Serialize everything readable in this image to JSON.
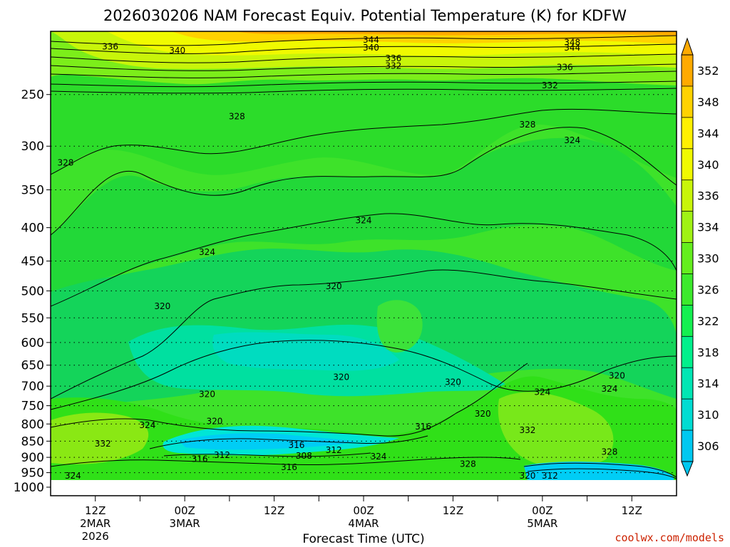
{
  "chart_data": {
    "type": "heatmap",
    "title": "2026030206 NAM Forecast Equiv. Potential Temperature (K) for KDFW",
    "xlabel": "Forecast Time (UTC)",
    "ylabel": "",
    "credit": "coolwx.com/models",
    "y_axis": {
      "scale": "log-pressure",
      "ylim": [
        1000,
        200
      ],
      "ticks": [
        250,
        300,
        350,
        400,
        450,
        500,
        550,
        600,
        650,
        700,
        750,
        800,
        850,
        900,
        950,
        1000
      ]
    },
    "x_axis": {
      "xlim_hours": [
        0,
        84
      ],
      "ticks": [
        {
          "hour": 6,
          "lines": [
            "12Z",
            "2MAR",
            "2026"
          ]
        },
        {
          "hour": 18,
          "lines": [
            "00Z",
            "3MAR"
          ]
        },
        {
          "hour": 30,
          "lines": [
            "12Z"
          ]
        },
        {
          "hour": 42,
          "lines": [
            "00Z",
            "4MAR"
          ]
        },
        {
          "hour": 54,
          "lines": [
            "12Z"
          ]
        },
        {
          "hour": 66,
          "lines": [
            "00Z",
            "5MAR"
          ]
        },
        {
          "hour": 78,
          "lines": [
            "12Z"
          ]
        }
      ]
    },
    "colorbar": {
      "levels": [
        306,
        310,
        314,
        318,
        322,
        326,
        330,
        334,
        336,
        340,
        344,
        348,
        352
      ],
      "colors": [
        "#00c8f0",
        "#00dcd2",
        "#00e6b4",
        "#00f08c",
        "#14f050",
        "#3cea2c",
        "#64ee1e",
        "#a0f214",
        "#c8f50a",
        "#f0fa00",
        "#fff000",
        "#ffd200",
        "#ffaa00"
      ]
    },
    "contour_labels": [
      {
        "value": "344",
        "h": 43,
        "p": 206
      },
      {
        "value": "348",
        "h": 70,
        "p": 208
      },
      {
        "value": "336",
        "h": 8,
        "p": 211
      },
      {
        "value": "340",
        "h": 17,
        "p": 214
      },
      {
        "value": "340",
        "h": 43,
        "p": 212
      },
      {
        "value": "344",
        "h": 70,
        "p": 212
      },
      {
        "value": "336",
        "h": 46,
        "p": 220
      },
      {
        "value": "332",
        "h": 46,
        "p": 226
      },
      {
        "value": "336",
        "h": 69,
        "p": 227
      },
      {
        "value": "332",
        "h": 67,
        "p": 242
      },
      {
        "value": "328",
        "h": 25,
        "p": 270
      },
      {
        "value": "328",
        "h": 64,
        "p": 278
      },
      {
        "value": "324",
        "h": 70,
        "p": 294
      },
      {
        "value": "328",
        "h": 2,
        "p": 318
      },
      {
        "value": "324",
        "h": 42,
        "p": 390
      },
      {
        "value": "324",
        "h": 21,
        "p": 436
      },
      {
        "value": "320",
        "h": 38,
        "p": 492
      },
      {
        "value": "320",
        "h": 15,
        "p": 528
      },
      {
        "value": "320",
        "h": 39,
        "p": 678
      },
      {
        "value": "320",
        "h": 54,
        "p": 690
      },
      {
        "value": "320",
        "h": 76,
        "p": 675
      },
      {
        "value": "324",
        "h": 66,
        "p": 715
      },
      {
        "value": "324",
        "h": 75,
        "p": 707
      },
      {
        "value": "320",
        "h": 21,
        "p": 720
      },
      {
        "value": "320",
        "h": 58,
        "p": 772
      },
      {
        "value": "320",
        "h": 22,
        "p": 792
      },
      {
        "value": "316",
        "h": 50,
        "p": 808
      },
      {
        "value": "324",
        "h": 13,
        "p": 803
      },
      {
        "value": "332",
        "h": 64,
        "p": 818
      },
      {
        "value": "332",
        "h": 7,
        "p": 858
      },
      {
        "value": "316",
        "h": 33,
        "p": 862
      },
      {
        "value": "312",
        "h": 38,
        "p": 877
      },
      {
        "value": "312",
        "h": 23,
        "p": 893
      },
      {
        "value": "316",
        "h": 20,
        "p": 905
      },
      {
        "value": "308",
        "h": 34,
        "p": 895
      },
      {
        "value": "324",
        "h": 44,
        "p": 898
      },
      {
        "value": "328",
        "h": 75,
        "p": 883
      },
      {
        "value": "328",
        "h": 56,
        "p": 922
      },
      {
        "value": "316",
        "h": 32,
        "p": 932
      },
      {
        "value": "324",
        "h": 3,
        "p": 960
      },
      {
        "value": "320",
        "h": 64,
        "p": 960
      },
      {
        "value": "312",
        "h": 67,
        "p": 960
      }
    ]
  }
}
